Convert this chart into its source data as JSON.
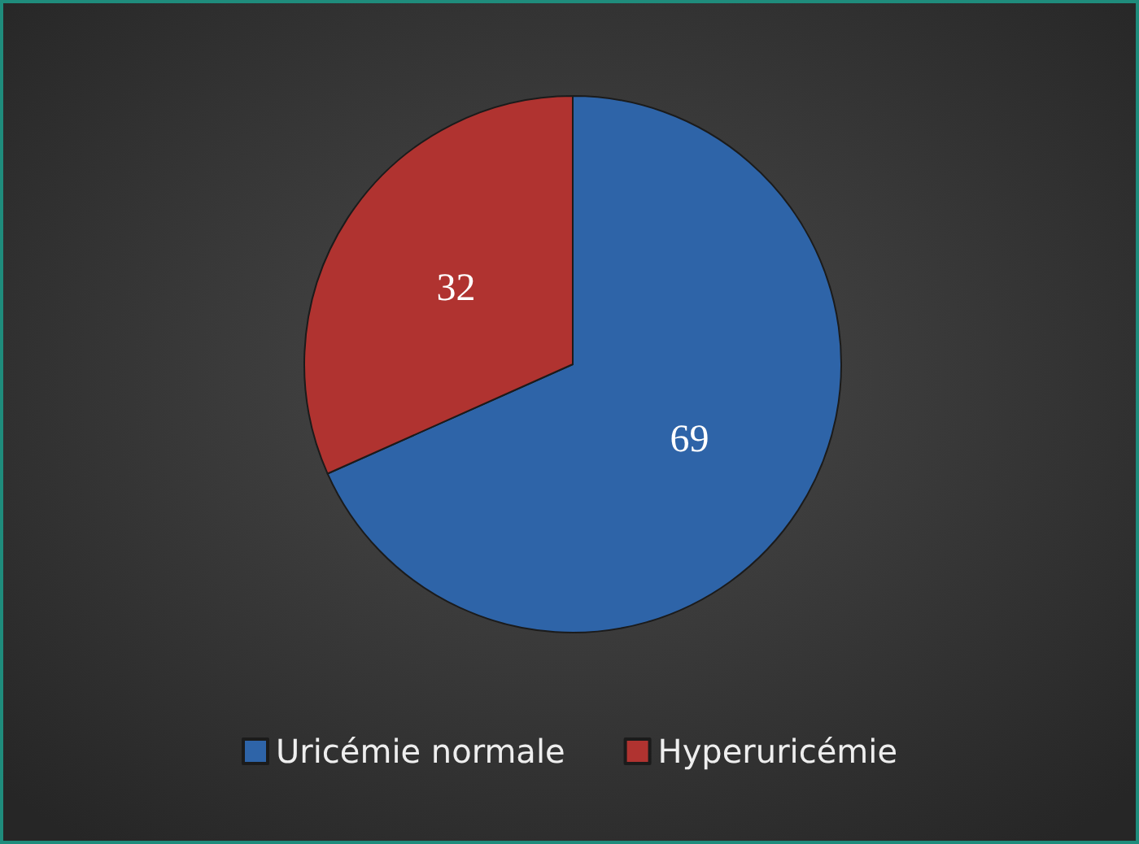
{
  "chart_data": {
    "type": "pie",
    "categories": [
      "Uricémie normale",
      "Hyperuricémie"
    ],
    "values": [
      69,
      32
    ],
    "colors": [
      "#2e64a8",
      "#b03330"
    ],
    "data_labels": true,
    "legend": "bottom"
  }
}
